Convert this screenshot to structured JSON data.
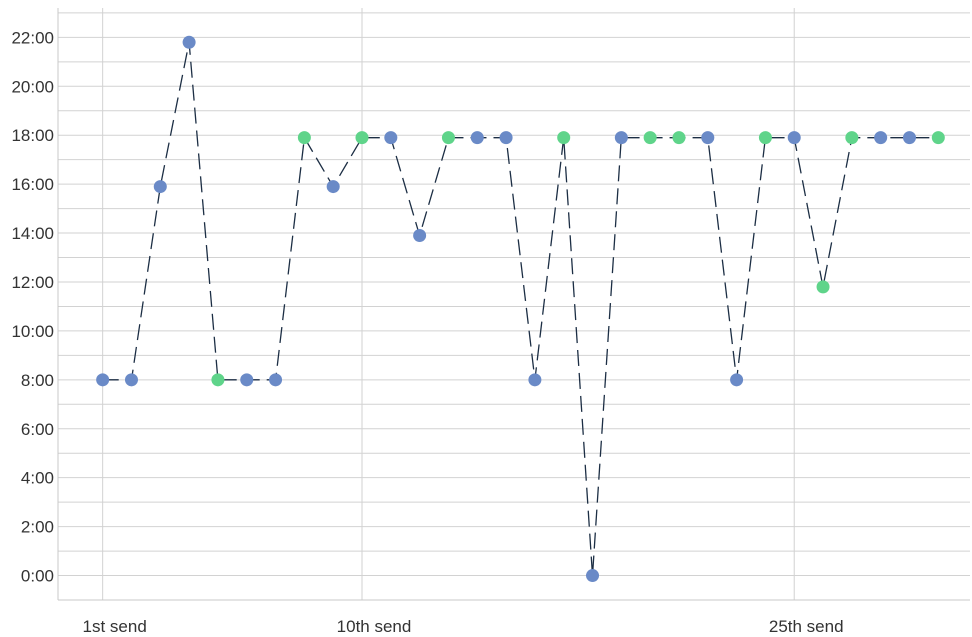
{
  "chart_data": {
    "type": "scatter",
    "title": "",
    "xlabel": "",
    "ylabel": "",
    "y_tick_labels": [
      "0:00",
      "2:00",
      "4:00",
      "6:00",
      "8:00",
      "10:00",
      "12:00",
      "14:00",
      "16:00",
      "18:00",
      "20:00",
      "22:00"
    ],
    "y_tick_values": [
      0,
      2,
      4,
      6,
      8,
      10,
      12,
      14,
      16,
      18,
      20,
      22
    ],
    "ylim": [
      -1,
      23.2
    ],
    "x_tick_labels": [
      "1st send",
      "10th send",
      "25th send"
    ],
    "x_tick_values": [
      1,
      10,
      25
    ],
    "xlim": [
      -0.55,
      31.1
    ],
    "grid": true,
    "colors": {
      "blue": "#6a8ac7",
      "green": "#5fd48a",
      "line": "#1c2e44"
    },
    "points": [
      {
        "x": 1,
        "y": 8.0,
        "group": "blue"
      },
      {
        "x": 2,
        "y": 8.0,
        "group": "blue"
      },
      {
        "x": 3,
        "y": 15.9,
        "group": "blue"
      },
      {
        "x": 4,
        "y": 21.8,
        "group": "blue"
      },
      {
        "x": 5,
        "y": 8.0,
        "group": "green"
      },
      {
        "x": 6,
        "y": 8.0,
        "group": "blue"
      },
      {
        "x": 7,
        "y": 8.0,
        "group": "blue"
      },
      {
        "x": 8,
        "y": 17.9,
        "group": "green"
      },
      {
        "x": 9,
        "y": 15.9,
        "group": "blue"
      },
      {
        "x": 10,
        "y": 17.9,
        "group": "green"
      },
      {
        "x": 11,
        "y": 17.9,
        "group": "blue"
      },
      {
        "x": 12,
        "y": 13.9,
        "group": "blue"
      },
      {
        "x": 13,
        "y": 17.9,
        "group": "green"
      },
      {
        "x": 14,
        "y": 17.9,
        "group": "blue"
      },
      {
        "x": 15,
        "y": 17.9,
        "group": "blue"
      },
      {
        "x": 16,
        "y": 8.0,
        "group": "blue"
      },
      {
        "x": 17,
        "y": 17.9,
        "group": "green"
      },
      {
        "x": 18,
        "y": 0.0,
        "group": "blue"
      },
      {
        "x": 19,
        "y": 17.9,
        "group": "blue"
      },
      {
        "x": 20,
        "y": 17.9,
        "group": "green"
      },
      {
        "x": 21,
        "y": 17.9,
        "group": "green"
      },
      {
        "x": 22,
        "y": 17.9,
        "group": "blue"
      },
      {
        "x": 23,
        "y": 8.0,
        "group": "blue"
      },
      {
        "x": 24,
        "y": 17.9,
        "group": "green"
      },
      {
        "x": 25,
        "y": 17.9,
        "group": "blue"
      },
      {
        "x": 26,
        "y": 11.8,
        "group": "green"
      },
      {
        "x": 27,
        "y": 17.9,
        "group": "green"
      },
      {
        "x": 28,
        "y": 17.9,
        "group": "blue"
      },
      {
        "x": 29,
        "y": 17.9,
        "group": "blue"
      },
      {
        "x": 30,
        "y": 17.9,
        "group": "green"
      }
    ]
  }
}
